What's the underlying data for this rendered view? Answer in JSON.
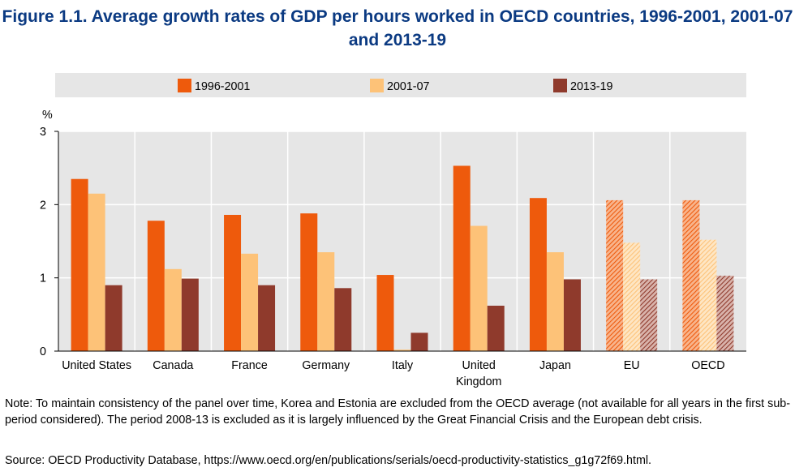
{
  "title_lines": [
    "Figure 1.1. Average growth rates of GDP per hours worked in OECD countries, 1996-2001, 2001-07",
    "and 2013-19"
  ],
  "colors": {
    "series_1996_2001": "#ee5a0c",
    "series_2001_07": "#fdc278",
    "series_2013_19": "#8f3a2c",
    "legend_band": "#e6e6e6",
    "grid": "#ffffff",
    "plot_bg": "#e6e6e6",
    "title": "#0b3a82"
  },
  "chart_data": {
    "type": "bar",
    "ylabel": "%",
    "ylim": [
      0,
      3
    ],
    "yticks": [
      0,
      1,
      2,
      3
    ],
    "legend_position": "top",
    "categories": [
      [
        "United States"
      ],
      [
        "Canada"
      ],
      [
        "France"
      ],
      [
        "Germany"
      ],
      [
        "Italy"
      ],
      [
        "United",
        "Kingdom"
      ],
      [
        "Japan"
      ],
      [
        "EU"
      ],
      [
        "OECD"
      ]
    ],
    "hatched_categories": [
      "EU",
      "OECD"
    ],
    "series": [
      {
        "name": "1996-2001",
        "values": [
          2.35,
          1.78,
          1.86,
          1.88,
          1.04,
          2.53,
          2.09,
          2.06,
          2.06
        ]
      },
      {
        "name": "2001-07",
        "values": [
          2.15,
          1.12,
          1.33,
          1.35,
          0.02,
          1.71,
          1.35,
          1.48,
          1.52
        ]
      },
      {
        "name": "2013-19",
        "values": [
          0.9,
          0.99,
          0.9,
          0.86,
          0.25,
          0.62,
          0.98,
          0.98,
          1.03
        ]
      }
    ]
  },
  "note": "Note: To maintain consistency of the panel over time, Korea and Estonia are excluded from the OECD average (not available for all years in the first sub-period considered). The period 2008-13 is excluded as it is largely influenced by the Great Financial Crisis and the European debt crisis.",
  "source": "Source: OECD Productivity Database, https://www.oecd.org/en/publications/serials/oecd-productivity-statistics_g1g72f69.html."
}
